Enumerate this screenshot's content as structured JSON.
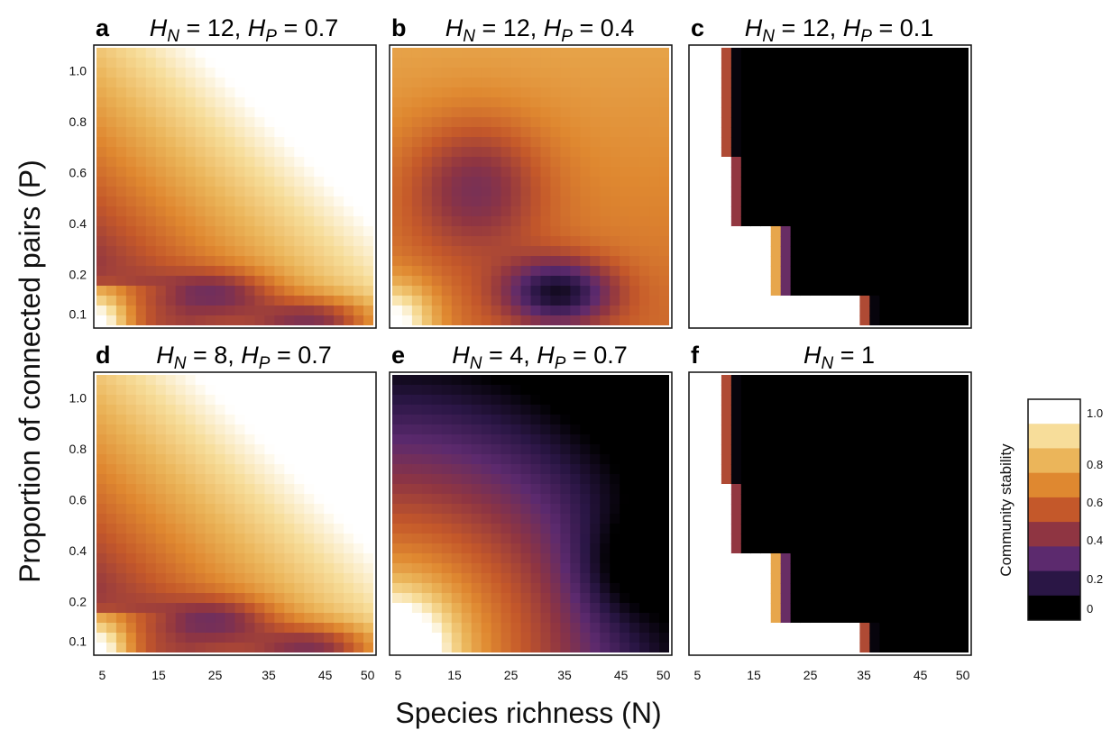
{
  "chart_data": {
    "type": "heatmap",
    "xlabel": "Species richness (N)",
    "ylabel": "Proportion of connected pairs (P)",
    "x_ticks": [
      "5",
      "15",
      "25",
      "35",
      "45",
      "50"
    ],
    "y_ticks": [
      "0.1",
      "0.2",
      "0.4",
      "0.6",
      "0.8",
      "1.0"
    ],
    "x_range": [
      5,
      50
    ],
    "y_range": [
      0.1,
      1.0
    ],
    "colorbar": {
      "label": "Community stability",
      "ticks": [
        "0",
        "0.2",
        "0.4",
        "0.6",
        "0.8",
        "1.0"
      ],
      "range": [
        0,
        1
      ],
      "colors": [
        "#000000",
        "#2a1645",
        "#5c2a6e",
        "#8f3542",
        "#c4582a",
        "#df8830",
        "#ebb55a",
        "#f7dd9a",
        "#ffffff"
      ]
    },
    "panels": [
      {
        "letter": "a",
        "title": "H_N = 12, H_P = 0.7",
        "HN": "12",
        "HP": "0.7",
        "pattern": "high"
      },
      {
        "letter": "b",
        "title": "H_N = 12, H_P = 0.4",
        "HN": "12",
        "HP": "0.4",
        "pattern": "mid"
      },
      {
        "letter": "c",
        "title": "H_N = 12, H_P = 0.1",
        "HN": "12",
        "HP": "0.1",
        "pattern": "low"
      },
      {
        "letter": "d",
        "title": "H_N = 8, H_P = 0.7",
        "HN": "8",
        "HP": "0.7",
        "pattern": "high"
      },
      {
        "letter": "e",
        "title": "H_N = 4, H_P = 0.7",
        "HN": "4",
        "HP": "0.7",
        "pattern": "fade"
      },
      {
        "letter": "f",
        "title": "H_N = 1",
        "HN": "1",
        "HP": "",
        "pattern": "low"
      }
    ]
  }
}
